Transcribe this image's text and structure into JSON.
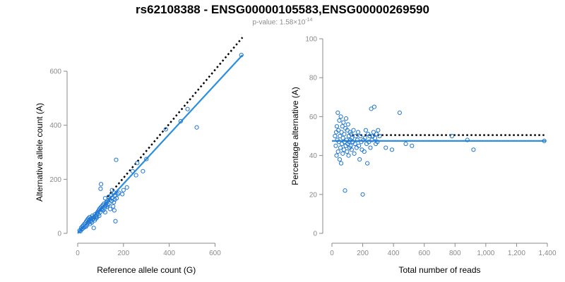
{
  "header": {
    "title": "rs62108388 - ENSG00000105583,ENSG00000269590",
    "pvalue_prefix": "p-value: 1.58×10",
    "pvalue_exponent": "-14"
  },
  "colors": {
    "points": "#1f77d4",
    "fit_line": "#2b8ee0",
    "expected_line": "#000000",
    "axis": "#8a8a8a"
  },
  "chart_data": [
    {
      "type": "scatter",
      "xlabel": "Reference allele count (G)",
      "ylabel": "Alternative allele count (A)",
      "xlim": [
        0,
        725
      ],
      "ylim": [
        0,
        660
      ],
      "xticks": [
        0,
        200,
        400,
        600
      ],
      "xtick_labels": [
        "0",
        "200",
        "400",
        "600"
      ],
      "yticks": [
        0,
        200,
        400,
        600
      ],
      "ytick_labels": [
        "0",
        "200",
        "400",
        "600"
      ],
      "fit_line": {
        "x": [
          0,
          720
        ],
        "y": [
          0,
          660
        ]
      },
      "expected_line": {
        "x": [
          130,
          720
        ],
        "y": [
          135,
          725
        ]
      },
      "points": [
        [
          8,
          10
        ],
        [
          12,
          8
        ],
        [
          15,
          20
        ],
        [
          18,
          15
        ],
        [
          20,
          25
        ],
        [
          22,
          18
        ],
        [
          25,
          30
        ],
        [
          28,
          22
        ],
        [
          30,
          35
        ],
        [
          32,
          28
        ],
        [
          35,
          40
        ],
        [
          36,
          25
        ],
        [
          38,
          45
        ],
        [
          40,
          30
        ],
        [
          42,
          50
        ],
        [
          44,
          38
        ],
        [
          46,
          55
        ],
        [
          48,
          42
        ],
        [
          50,
          48
        ],
        [
          52,
          60
        ],
        [
          54,
          35
        ],
        [
          55,
          52
        ],
        [
          58,
          45
        ],
        [
          60,
          58
        ],
        [
          62,
          40
        ],
        [
          64,
          65
        ],
        [
          65,
          50
        ],
        [
          68,
          55
        ],
        [
          70,
          20
        ],
        [
          72,
          60
        ],
        [
          74,
          48
        ],
        [
          75,
          70
        ],
        [
          78,
          62
        ],
        [
          80,
          55
        ],
        [
          82,
          68
        ],
        [
          84,
          75
        ],
        [
          85,
          60
        ],
        [
          88,
          80
        ],
        [
          90,
          72
        ],
        [
          92,
          85
        ],
        [
          94,
          65
        ],
        [
          95,
          90
        ],
        [
          98,
          78
        ],
        [
          100,
          95
        ],
        [
          100,
          165
        ],
        [
          102,
          182
        ],
        [
          104,
          88
        ],
        [
          105,
          100
        ],
        [
          108,
          92
        ],
        [
          110,
          105
        ],
        [
          112,
          85
        ],
        [
          115,
          110
        ],
        [
          118,
          95
        ],
        [
          120,
          130
        ],
        [
          120,
          78
        ],
        [
          122,
          102
        ],
        [
          125,
          115
        ],
        [
          128,
          98
        ],
        [
          130,
          120
        ],
        [
          132,
          105
        ],
        [
          135,
          135
        ],
        [
          138,
          110
        ],
        [
          140,
          125
        ],
        [
          142,
          90
        ],
        [
          145,
          140
        ],
        [
          148,
          120
        ],
        [
          150,
          160
        ],
        [
          150,
          130
        ],
        [
          155,
          100
        ],
        [
          158,
          115
        ],
        [
          160,
          150
        ],
        [
          160,
          85
        ],
        [
          162,
          125
        ],
        [
          165,
          140
        ],
        [
          165,
          45
        ],
        [
          168,
          272
        ],
        [
          170,
          130
        ],
        [
          175,
          145
        ],
        [
          180,
          150
        ],
        [
          195,
          145
        ],
        [
          200,
          160
        ],
        [
          215,
          170
        ],
        [
          240,
          230
        ],
        [
          255,
          215
        ],
        [
          260,
          260
        ],
        [
          285,
          230
        ],
        [
          300,
          275
        ],
        [
          385,
          385
        ],
        [
          450,
          415
        ],
        [
          480,
          460
        ],
        [
          520,
          392
        ],
        [
          715,
          660
        ]
      ]
    },
    {
      "type": "scatter",
      "xlabel": "Total number of reads",
      "ylabel": "Percentage alternative (A)",
      "xlim": [
        0,
        1400
      ],
      "ylim": [
        0,
        100
      ],
      "xticks": [
        0,
        200,
        400,
        600,
        800,
        1000,
        1200,
        1400
      ],
      "xtick_labels": [
        "0",
        "200",
        "400",
        "600",
        "800",
        "1,000",
        "1,200",
        "1,400"
      ],
      "yticks": [
        0,
        20,
        40,
        60,
        80,
        100
      ],
      "ytick_labels": [
        "0",
        "20",
        "40",
        "60",
        "80",
        "100"
      ],
      "fit_line": {
        "x": [
          0,
          1390
        ],
        "y": [
          47.5,
          47.5
        ]
      },
      "expected_line": {
        "x": [
          130,
          1380
        ],
        "y": [
          50.5,
          50.5
        ]
      },
      "points": [
        [
          20,
          50
        ],
        [
          25,
          45
        ],
        [
          28,
          52
        ],
        [
          30,
          40
        ],
        [
          32,
          55
        ],
        [
          35,
          48
        ],
        [
          38,
          62
        ],
        [
          40,
          42
        ],
        [
          42,
          53
        ],
        [
          45,
          47
        ],
        [
          48,
          58
        ],
        [
          50,
          38
        ],
        [
          52,
          50
        ],
        [
          55,
          44
        ],
        [
          58,
          60
        ],
        [
          60,
          36
        ],
        [
          62,
          52
        ],
        [
          65,
          46
        ],
        [
          68,
          55
        ],
        [
          70,
          41
        ],
        [
          72,
          49
        ],
        [
          75,
          57
        ],
        [
          78,
          43
        ],
        [
          80,
          51
        ],
        [
          82,
          47
        ],
        [
          85,
          22
        ],
        [
          88,
          54
        ],
        [
          90,
          45
        ],
        [
          92,
          59
        ],
        [
          95,
          48
        ],
        [
          98,
          42
        ],
        [
          100,
          53
        ],
        [
          102,
          46
        ],
        [
          105,
          56
        ],
        [
          108,
          40
        ],
        [
          110,
          50
        ],
        [
          112,
          47
        ],
        [
          115,
          44
        ],
        [
          118,
          52
        ],
        [
          120,
          48
        ],
        [
          122,
          45
        ],
        [
          125,
          51
        ],
        [
          128,
          43
        ],
        [
          130,
          49
        ],
        [
          135,
          47
        ],
        [
          140,
          53
        ],
        [
          145,
          41
        ],
        [
          150,
          46
        ],
        [
          155,
          50
        ],
        [
          160,
          44
        ],
        [
          165,
          48
        ],
        [
          170,
          52
        ],
        [
          175,
          45
        ],
        [
          180,
          38
        ],
        [
          185,
          50
        ],
        [
          190,
          47
        ],
        [
          195,
          43
        ],
        [
          200,
          20
        ],
        [
          205,
          48
        ],
        [
          210,
          42
        ],
        [
          215,
          49
        ],
        [
          220,
          53
        ],
        [
          225,
          46
        ],
        [
          230,
          36
        ],
        [
          235,
          51
        ],
        [
          240,
          47
        ],
        [
          245,
          50
        ],
        [
          250,
          44
        ],
        [
          255,
          64
        ],
        [
          260,
          48
        ],
        [
          265,
          50
        ],
        [
          270,
          52
        ],
        [
          275,
          65
        ],
        [
          280,
          49
        ],
        [
          285,
          46
        ],
        [
          290,
          51
        ],
        [
          295,
          47
        ],
        [
          300,
          53
        ],
        [
          310,
          50
        ],
        [
          350,
          44
        ],
        [
          390,
          43
        ],
        [
          440,
          62
        ],
        [
          480,
          46
        ],
        [
          520,
          45
        ],
        [
          780,
          50
        ],
        [
          880,
          48
        ],
        [
          920,
          43
        ],
        [
          1380,
          47.5
        ]
      ]
    }
  ]
}
